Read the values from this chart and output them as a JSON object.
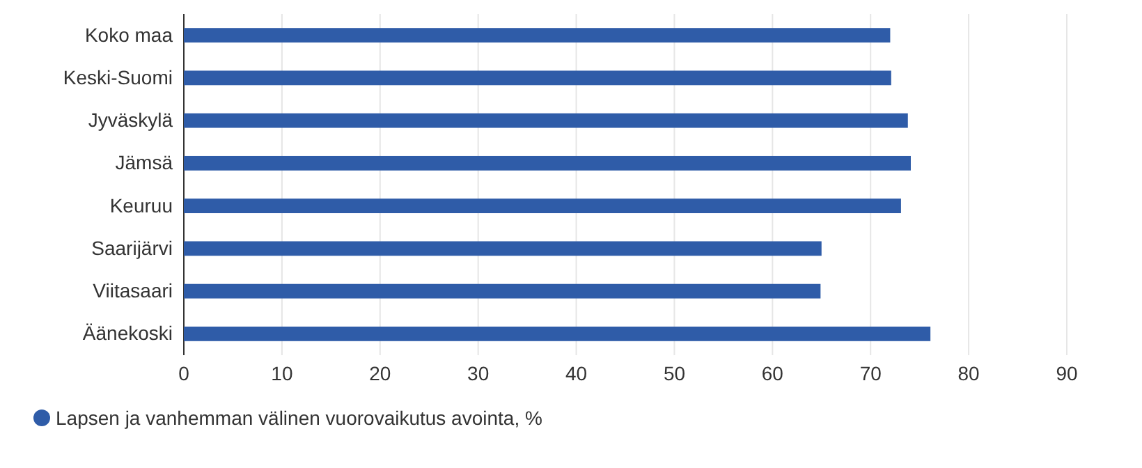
{
  "chart_data": {
    "type": "bar",
    "orientation": "horizontal",
    "categories": [
      "Koko maa",
      "Keski-Suomi",
      "Jyväskylä",
      "Jämsä",
      "Keuruu",
      "Saarijärvi",
      "Viitasaari",
      "Äänekoski"
    ],
    "series": [
      {
        "name": "Lapsen ja vanhemman välinen vuorovaikutus avointa, %",
        "color": "#2f5ca8",
        "values": [
          72.0,
          72.1,
          73.8,
          74.1,
          73.1,
          65.0,
          64.9,
          76.1
        ]
      }
    ],
    "xlim": [
      0,
      90
    ],
    "xticks": [
      0,
      10,
      20,
      30,
      40,
      50,
      60,
      70,
      80,
      90
    ],
    "grid": "x",
    "legend": "bottom left"
  }
}
